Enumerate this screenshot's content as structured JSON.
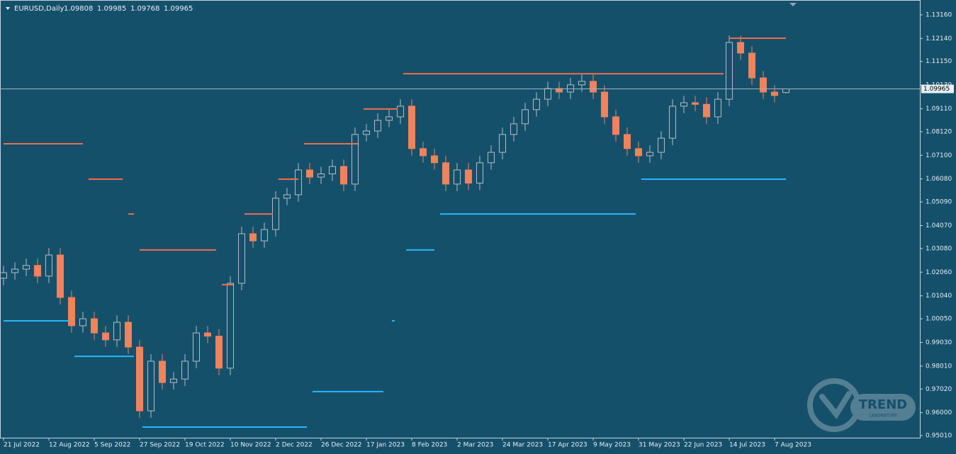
{
  "chart_data": {
    "type": "candlestick",
    "title": "EURUSD,Daily",
    "header_values": [
      1.09808,
      1.09985,
      1.09768,
      1.09965
    ],
    "current_price": 1.09965,
    "up_color": "#b4bcc2",
    "down_color": "#f0825c",
    "x": [
      0,
      4,
      8,
      12,
      16,
      20,
      24,
      28,
      32,
      36,
      40,
      44,
      48,
      52,
      56,
      60,
      64,
      68,
      72,
      76,
      80,
      84,
      88,
      92,
      96,
      100,
      104,
      108,
      112,
      116,
      120,
      124,
      128,
      132,
      136,
      140,
      144,
      148,
      152,
      156,
      160,
      164,
      168,
      172,
      176,
      180,
      184,
      188,
      192,
      196,
      200,
      204,
      208,
      212,
      216,
      220,
      224,
      228,
      232,
      236,
      240,
      244,
      248,
      252,
      256,
      260,
      264,
      268,
      272,
      276
    ],
    "open": [
      1.018,
      1.0204,
      1.0219,
      1.0235,
      1.0189,
      1.028,
      1.0097,
      0.9975,
      1.0005,
      0.9944,
      0.9914,
      0.999,
      0.9883,
      0.9608,
      0.9822,
      0.973,
      0.9745,
      0.9822,
      0.9944,
      0.993,
      0.9792,
      1.0158,
      1.0372,
      1.0341,
      1.039,
      1.0525,
      1.054,
      1.0647,
      1.0616,
      1.063,
      1.0662,
      1.0586,
      1.08,
      1.0815,
      1.0861,
      1.0876,
      1.0922,
      1.0739,
      1.0708,
      1.0678,
      1.0586,
      1.0647,
      1.059,
      1.0678,
      1.0723,
      1.08,
      1.0846,
      1.0907,
      1.0952,
      1.0998,
      1.0983,
      1.1014,
      1.1029,
      1.0983,
      1.0876,
      1.08,
      1.0739,
      1.0708,
      1.0723,
      1.0784,
      1.0922,
      1.0937,
      1.093,
      1.0876,
      1.0952,
      1.1197,
      1.1151,
      1.1044,
      1.0983,
      1.09808
    ],
    "high": [
      1.0234,
      1.0249,
      1.0265,
      1.0265,
      1.031,
      1.031,
      1.0127,
      1.0035,
      1.0035,
      0.9974,
      1.002,
      1.002,
      0.9913,
      0.9852,
      0.9852,
      0.9775,
      0.9852,
      0.9974,
      0.9974,
      0.996,
      1.0188,
      1.0402,
      1.0402,
      1.042,
      1.0555,
      1.057,
      1.0677,
      1.0677,
      1.066,
      1.0692,
      1.0692,
      1.083,
      1.0845,
      1.0891,
      1.0906,
      1.0952,
      1.0952,
      1.0769,
      1.0738,
      1.0708,
      1.0677,
      1.0677,
      1.0708,
      1.0753,
      1.083,
      1.0876,
      1.0937,
      1.0982,
      1.1028,
      1.1028,
      1.1044,
      1.1059,
      1.1059,
      1.1013,
      1.0906,
      1.083,
      1.0769,
      1.0753,
      1.0814,
      1.0952,
      1.0967,
      1.0967,
      1.096,
      1.0982,
      1.1227,
      1.1227,
      1.1181,
      1.1074,
      1.1013,
      1.09985
    ],
    "low": [
      1.015,
      1.0174,
      1.0189,
      1.0159,
      1.0159,
      1.0067,
      0.9945,
      0.9945,
      0.9914,
      0.9884,
      0.9884,
      0.9853,
      0.9578,
      0.9578,
      0.97,
      0.97,
      0.9715,
      0.9792,
      0.99,
      0.9762,
      0.9762,
      1.0128,
      1.0311,
      1.0311,
      1.036,
      1.0495,
      1.051,
      1.0586,
      1.0586,
      1.06,
      1.0556,
      1.0556,
      1.077,
      1.0785,
      1.0831,
      1.0846,
      1.0709,
      1.0678,
      1.0648,
      1.0556,
      1.0556,
      1.056,
      1.056,
      1.0648,
      1.0693,
      1.077,
      1.0816,
      1.0877,
      1.0922,
      1.0953,
      1.0953,
      1.0984,
      1.0953,
      1.0846,
      1.077,
      1.0709,
      1.0678,
      1.0678,
      1.0693,
      1.0754,
      1.0892,
      1.09,
      1.0846,
      1.0846,
      1.0922,
      1.1121,
      1.1014,
      1.0953,
      1.0938,
      1.09768
    ],
    "close": [
      1.0204,
      1.0219,
      1.0235,
      1.0189,
      1.028,
      1.0097,
      0.9975,
      1.0005,
      0.9944,
      0.9914,
      0.999,
      0.9883,
      0.9608,
      0.9822,
      0.973,
      0.9745,
      0.9822,
      0.9944,
      0.993,
      0.9792,
      1.0158,
      1.0372,
      1.0341,
      1.039,
      1.0525,
      1.054,
      1.0647,
      1.0616,
      1.063,
      1.0662,
      1.0586,
      1.08,
      1.0815,
      1.0861,
      1.0876,
      1.0922,
      1.0739,
      1.0708,
      1.0678,
      1.0586,
      1.0647,
      1.059,
      1.0678,
      1.0723,
      1.08,
      1.0846,
      1.0907,
      1.0952,
      1.0998,
      1.0983,
      1.1014,
      1.1029,
      1.0983,
      1.0876,
      1.08,
      1.0739,
      1.0708,
      1.0723,
      1.0784,
      1.0922,
      1.0937,
      1.093,
      1.0876,
      1.0952,
      1.1197,
      1.1151,
      1.1044,
      1.0983,
      1.0968,
      1.09965
    ],
    "levels": [
      {
        "color": "#f26b4a",
        "x_start": [
          0,
          30,
          44,
          48,
          77,
          85,
          97,
          106,
          127,
          141,
          256
        ],
        "x_end": [
          28,
          42,
          46,
          75,
          81,
          95,
          104,
          125,
          139,
          254,
          276
        ],
        "values": [
          1.076,
          1.0607,
          1.0457,
          1.0302,
          1.0152,
          1.0457,
          1.0607,
          1.076,
          1.091,
          1.1062,
          1.1215
        ]
      },
      {
        "color": "#29b6f6",
        "x_start": [
          0,
          25,
          49,
          109,
          137,
          142,
          154,
          225
        ],
        "x_end": [
          23,
          46,
          107,
          134,
          138,
          152,
          223,
          276
        ],
        "values": [
          0.9996,
          0.9843,
          0.9538,
          0.9691,
          0.9996,
          1.0302,
          1.0457,
          1.0607
        ]
      }
    ],
    "xlim": [
      -1.25,
      323.25
    ],
    "xticks": [
      {
        "value": 0,
        "label": "21 Jul 2022"
      },
      {
        "value": 16,
        "label": "12 Aug 2022"
      },
      {
        "value": 32,
        "label": "5 Sep 2022"
      },
      {
        "value": 48,
        "label": "27 Sep 2022"
      },
      {
        "value": 64,
        "label": "19 Oct 2022"
      },
      {
        "value": 80,
        "label": "10 Nov 2022"
      },
      {
        "value": 96,
        "label": "2 Dec 2022"
      },
      {
        "value": 112,
        "label": "26 Dec 2022"
      },
      {
        "value": 128,
        "label": "17 Jan 2023"
      },
      {
        "value": 144,
        "label": "8 Feb 2023"
      },
      {
        "value": 160,
        "label": "2 Mar 2023"
      },
      {
        "value": 176,
        "label": "24 Mar 2023"
      },
      {
        "value": 192,
        "label": "17 Apr 2023"
      },
      {
        "value": 208,
        "label": "9 May 2023"
      },
      {
        "value": 224,
        "label": "31 May 2023"
      },
      {
        "value": 240,
        "label": "22 Jun 2023"
      },
      {
        "value": 256,
        "label": "14 Jul 2023"
      },
      {
        "value": 272,
        "label": "7 Aug 2023"
      }
    ],
    "ylim": [
      0.9492,
      1.138
    ],
    "yticks": [
      {
        "value": 1.1316,
        "label": "1.13160"
      },
      {
        "value": 1.1214,
        "label": "1.12140"
      },
      {
        "value": 1.1115,
        "label": "1.11150"
      },
      {
        "value": 1.1013,
        "label": "1.10130"
      },
      {
        "value": 1.0911,
        "label": "1.09110"
      },
      {
        "value": 1.0812,
        "label": "1.08120"
      },
      {
        "value": 1.071,
        "label": "1.07100"
      },
      {
        "value": 1.0608,
        "label": "1.06080"
      },
      {
        "value": 1.0509,
        "label": "1.05090"
      },
      {
        "value": 1.0407,
        "label": "1.04070"
      },
      {
        "value": 1.0308,
        "label": "1.03080"
      },
      {
        "value": 1.0206,
        "label": "1.02060"
      },
      {
        "value": 1.0104,
        "label": "1.01040"
      },
      {
        "value": 1.0005,
        "label": "1.00050"
      },
      {
        "value": 0.9903,
        "label": "0.99030"
      },
      {
        "value": 0.9801,
        "label": "0.98010"
      },
      {
        "value": 0.9702,
        "label": "0.97020"
      },
      {
        "value": 0.96,
        "label": "0.96000"
      },
      {
        "value": 0.9501,
        "label": "0.95010"
      }
    ],
    "watermark": [
      "TREND",
      "LABORATORY"
    ]
  }
}
